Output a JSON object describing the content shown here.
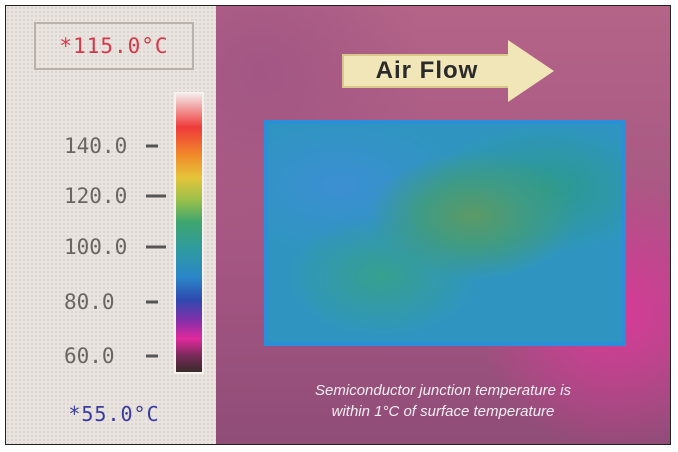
{
  "legend": {
    "max_readout": "*115.0°C",
    "min_readout": "*55.0°C",
    "ticks": [
      {
        "label": "140.0",
        "value": 140
      },
      {
        "label": "120.0",
        "value": 120
      },
      {
        "label": "100.0",
        "value": 100
      },
      {
        "label": "80.0",
        "value": 80
      },
      {
        "label": "60.0",
        "value": 60
      }
    ]
  },
  "arrow": {
    "label": "Air Flow"
  },
  "caption": {
    "line1": "Semiconductor junction temperature is",
    "line2": "within 1°C of surface temperature"
  },
  "colors": {
    "max_readout": "#d6384a",
    "min_readout": "#3a3aa0",
    "background": "#b05a84",
    "block_edge": "#2b8ed8"
  }
}
